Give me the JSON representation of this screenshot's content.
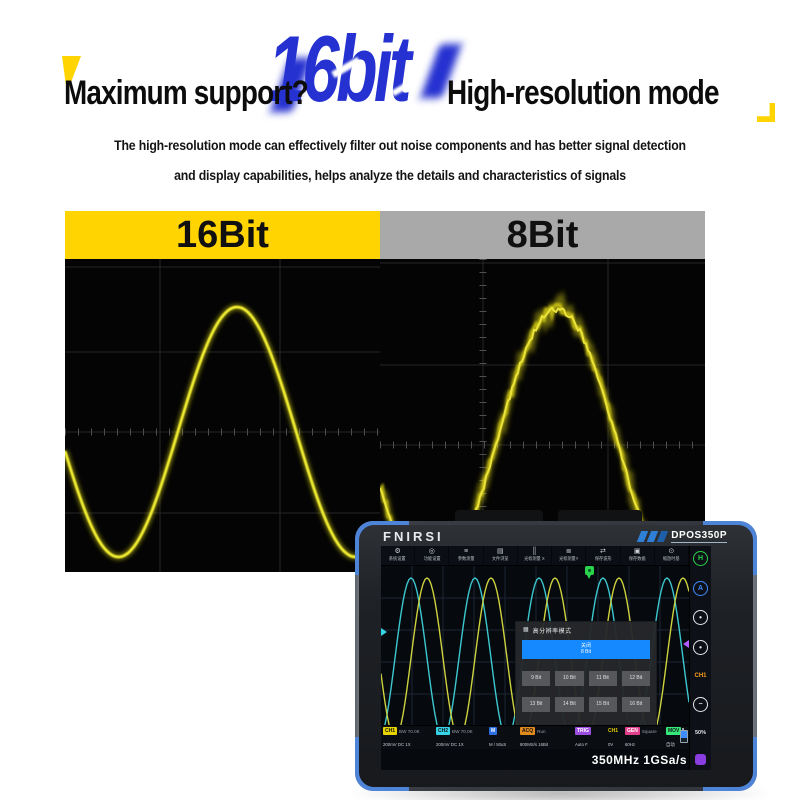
{
  "header": {
    "title_left": "Maximum support?",
    "title_big": "16bit",
    "title_right": "High-resolution mode",
    "subtitle1": "The high-resolution mode can effectively filter out noise components and has better signal detection",
    "subtitle2": "and display capabilities, helps analyze the details and characteristics of signals"
  },
  "comparison": {
    "left_label": "16Bit",
    "right_label": "8Bit"
  },
  "colors": {
    "accent_yellow": "#ffd400",
    "title_blue": "#2531d0",
    "panel16_header": "#ffd400",
    "panel8_header": "#a9a9a9",
    "trace_yellow": "#e8e412",
    "screen_trace_cyan": "#3cc8cf",
    "screen_trace_yellow": "#cdd23e",
    "dialog_selected_blue": "#1589ff",
    "device_corner_blue": "#4d84d8"
  },
  "device": {
    "brand": "FNIRSI",
    "model": "DPOS350P",
    "toolbar": [
      {
        "icon": "gear-icon",
        "label": "系统设置"
      },
      {
        "icon": "function-settings-icon",
        "label": "功能设置"
      },
      {
        "icon": "parameter-measure-icon",
        "label": "参数测量"
      },
      {
        "icon": "file-browser-icon",
        "label": "文件浏览"
      },
      {
        "icon": "cursor-x-icon",
        "label": "光标测量 X"
      },
      {
        "icon": "cursor-y-icon",
        "label": "光标测量Y"
      },
      {
        "icon": "save-waveform-icon",
        "label": "保存波形"
      },
      {
        "icon": "save-data-icon",
        "label": "保存数据"
      },
      {
        "icon": "zoom-timebase-icon",
        "label": "缩放时基"
      }
    ],
    "dialog": {
      "title": "高分辨率模式",
      "selected_line1": "关闭",
      "selected_line2": "8 Bit",
      "options": [
        "9 Bit",
        "10 Bit",
        "11 Bit",
        "12 Bit",
        "13 Bit",
        "14 Bit",
        "15 Bit",
        "16 Bit"
      ]
    },
    "side": [
      {
        "label": "H"
      },
      {
        "label": "A"
      },
      {
        "label": "•"
      },
      {
        "label": "•"
      },
      {
        "label": "CH1"
      },
      {
        "label": "−"
      },
      {
        "label": "50%"
      },
      {
        "label": ""
      }
    ],
    "status": {
      "groups": [
        {
          "b1": "CH1",
          "b2": "BW 70.0K",
          "val": "200mV DC 1X"
        },
        {
          "b1": "CH2",
          "b2": "BW 70.0K",
          "val": "200mV DC 1X"
        },
        {
          "b1": "M",
          "b2": "",
          "val": "M / 50uS"
        },
        {
          "b1": "ACQ",
          "b2": "Run",
          "val": "800MS/s 16Bit"
        },
        {
          "b1": "TRIG",
          "b2": "",
          "val": "Auto  F"
        },
        {
          "b1": "CH1",
          "b2": "",
          "val": "0V"
        },
        {
          "b1": "GEN",
          "b2": "Square",
          "val": "60Hz"
        },
        {
          "b1": "MOV",
          "b2": "",
          "val": "自动"
        }
      ],
      "specs": "350MHz  1GSa/s"
    }
  }
}
